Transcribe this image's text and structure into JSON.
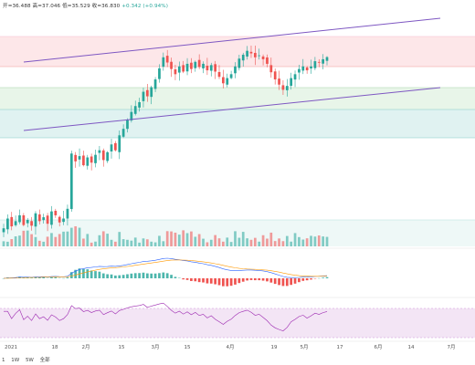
{
  "ohlc": {
    "open": "开=36.488",
    "high": "高=37.046",
    "low": "低=35.529",
    "close": "收=36.830",
    "change": "+0.342 (+0.94%)"
  },
  "timeframes": [
    "1",
    "1W",
    "5W",
    "全部"
  ],
  "colors": {
    "up": "#26a69a",
    "down": "#ef5350",
    "channel": "#7e57c2",
    "macd_line": "#2962ff",
    "signal_line": "#ff9800",
    "rsi_line": "#9c27b0",
    "rsi_band": "#f3e5f5",
    "zone_red": "#fde7e9",
    "zone_green": "#e8f5e9",
    "zone_teal": "#e0f2f1"
  },
  "chart_data": {
    "type": "candlestick",
    "x_ticks": [
      "2021",
      "18",
      "2月",
      "15",
      "3月",
      "15",
      "4月",
      "19",
      "5月",
      "17",
      "6月",
      "14",
      "7月"
    ],
    "closes": [
      10.5,
      12.0,
      10.8,
      11.6,
      12.5,
      11.0,
      11.8,
      10.9,
      12.8,
      11.6,
      12.2,
      11.2,
      13.1,
      12.5,
      11.4,
      12.0,
      13.5,
      22.0,
      20.8,
      21.6,
      20.2,
      21.4,
      20.6,
      21.8,
      22.5,
      21.0,
      22.2,
      23.4,
      22.5,
      24.8,
      25.8,
      27.2,
      28.4,
      29.3,
      29.9,
      31.5,
      30.8,
      32.2,
      33.4,
      35.1,
      36.8,
      36.0,
      35.0,
      34.2,
      35.4,
      34.6,
      35.8,
      35.0,
      36.1,
      35.3,
      35.8,
      34.8,
      35.6,
      34.6,
      33.8,
      32.8,
      33.6,
      34.2,
      35.4,
      36.6,
      37.2,
      37.8,
      37.4,
      36.8,
      37.1,
      36.5,
      35.8,
      34.5,
      33.4,
      32.6,
      31.8,
      32.4,
      33.6,
      34.2,
      35.0,
      35.4,
      34.8,
      35.4,
      36.2,
      36.0,
      36.5,
      36.83
    ],
    "volume_scale_note": "relative",
    "indicators": [
      "Volume",
      "MACD",
      "RSI"
    ]
  }
}
